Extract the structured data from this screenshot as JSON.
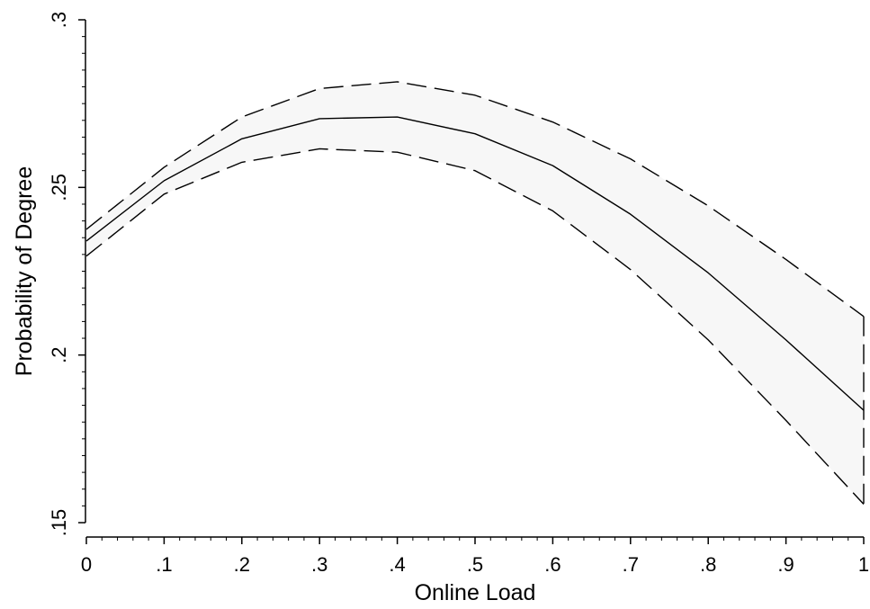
{
  "chart_data": {
    "type": "line",
    "title": "",
    "xlabel": "Online Load",
    "ylabel": "Probability of Degree",
    "xlim": [
      0,
      1
    ],
    "ylim": [
      0.15,
      0.3
    ],
    "x_ticks": [
      0,
      0.1,
      0.2,
      0.3,
      0.4,
      0.5,
      0.6,
      0.7,
      0.8,
      0.9,
      1
    ],
    "x_tick_labels": [
      "0",
      ".1",
      ".2",
      ".3",
      ".4",
      ".5",
      ".6",
      ".7",
      ".8",
      ".9",
      "1"
    ],
    "y_ticks": [
      0.15,
      0.2,
      0.25,
      0.3
    ],
    "y_tick_labels": [
      ".15",
      ".2",
      ".25",
      ".3"
    ],
    "grid": false,
    "legend": "none",
    "x": [
      0,
      0.1,
      0.2,
      0.3,
      0.4,
      0.5,
      0.6,
      0.7,
      0.8,
      0.9,
      1
    ],
    "series": [
      {
        "role": "estimate",
        "style": "solid",
        "values": [
          0.234,
          0.252,
          0.2645,
          0.2705,
          0.271,
          0.266,
          0.2565,
          0.242,
          0.2245,
          0.2045,
          0.1835
        ]
      },
      {
        "role": "upper",
        "style": "dashed",
        "values": [
          0.2375,
          0.256,
          0.271,
          0.2795,
          0.2815,
          0.2775,
          0.2695,
          0.2585,
          0.2445,
          0.2285,
          0.2115
        ]
      },
      {
        "role": "lower",
        "style": "dashed",
        "values": [
          0.2295,
          0.248,
          0.2575,
          0.2615,
          0.2605,
          0.255,
          0.243,
          0.2255,
          0.2045,
          0.1805,
          0.1555
        ]
      }
    ],
    "colors": {
      "line": "#000000",
      "band_fill": "#f7f7f7",
      "axis": "#000000"
    }
  }
}
